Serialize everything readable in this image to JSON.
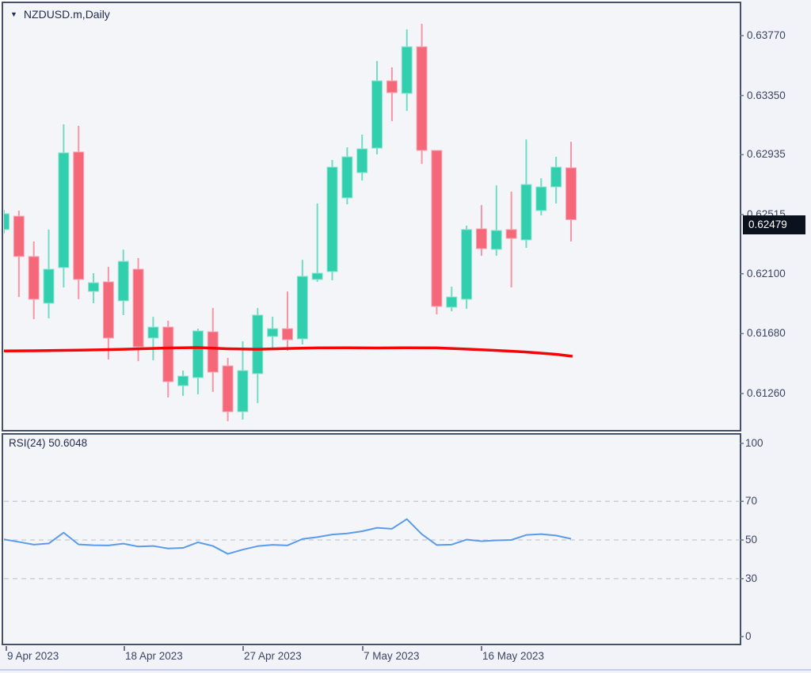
{
  "header": {
    "symbol": "NZDUSD.m,Daily",
    "dropdown_glyph": "▼"
  },
  "colors": {
    "background": "#f4f5f9",
    "outer_background": "#ffffff",
    "strip_background": "#f1f3f8",
    "frame": "#475069",
    "label_text": "#3b4563",
    "title_text": "#232c4e",
    "bull_body": "#31cfad",
    "bull_edge": "#90e6d2",
    "bull_wick": "#6fdcc5",
    "bear_body": "#f4687a",
    "bear_edge": "#f8a9b7",
    "bear_wick": "#f795a6",
    "ma_line": "#f50505",
    "rsi_line": "#5b9bea",
    "grid_dashed": "#c7cad6",
    "tick": "#6a7287",
    "price_box_bg": "#0c111e",
    "price_box_text": "#ffffff",
    "bottom_edge_line": "#c5cfec"
  },
  "time_axis": {
    "labels": [
      "9 Apr 2023",
      "18 Apr 2023",
      "27 Apr 2023",
      "7 May 2023",
      "16 May 2023"
    ]
  },
  "chart_data": [
    {
      "type": "candlestick",
      "panel": "price",
      "title": "NZDUSD.m,Daily",
      "legend_position": "top-left",
      "grid": "off",
      "y_axis_side": "right",
      "ylim": [
        0.6095,
        0.64
      ],
      "y_ticks": [
        {
          "label": "0.63770",
          "value": 0.6377
        },
        {
          "label": "0.63350",
          "value": 0.6335
        },
        {
          "label": "0.62935",
          "value": 0.62935
        },
        {
          "label": "0.62515",
          "value": 0.62515
        },
        {
          "label": "0.62100",
          "value": 0.621
        },
        {
          "label": "0.61680",
          "value": 0.6168
        },
        {
          "label": "0.61260",
          "value": 0.6126
        }
      ],
      "current_price": {
        "label": "0.62479",
        "value": 0.62479
      },
      "candles": [
        {
          "o": 0.6241,
          "h": 0.62548,
          "l": 0.62382,
          "c": 0.62521
        },
        {
          "o": 0.62504,
          "h": 0.62543,
          "l": 0.61937,
          "c": 0.62221
        },
        {
          "o": 0.62221,
          "h": 0.62326,
          "l": 0.61782,
          "c": 0.61921
        },
        {
          "o": 0.61893,
          "h": 0.6241,
          "l": 0.61787,
          "c": 0.62132
        },
        {
          "o": 0.62143,
          "h": 0.63148,
          "l": 0.62004,
          "c": 0.62948
        },
        {
          "o": 0.62954,
          "h": 0.63137,
          "l": 0.61921,
          "c": 0.6206
        },
        {
          "o": 0.61976,
          "h": 0.62104,
          "l": 0.61893,
          "c": 0.62037
        },
        {
          "o": 0.62043,
          "h": 0.62148,
          "l": 0.61499,
          "c": 0.61649
        },
        {
          "o": 0.6191,
          "h": 0.6227,
          "l": 0.6181,
          "c": 0.62187
        },
        {
          "o": 0.62132,
          "h": 0.6221,
          "l": 0.61487,
          "c": 0.61587
        },
        {
          "o": 0.61649,
          "h": 0.61798,
          "l": 0.61493,
          "c": 0.61726
        },
        {
          "o": 0.61726,
          "h": 0.61771,
          "l": 0.61232,
          "c": 0.61343
        },
        {
          "o": 0.61315,
          "h": 0.61421,
          "l": 0.61243,
          "c": 0.61382
        },
        {
          "o": 0.61371,
          "h": 0.61715,
          "l": 0.61254,
          "c": 0.61699
        },
        {
          "o": 0.61693,
          "h": 0.6186,
          "l": 0.61271,
          "c": 0.6141
        },
        {
          "o": 0.61454,
          "h": 0.6151,
          "l": 0.61066,
          "c": 0.61132
        },
        {
          "o": 0.61132,
          "h": 0.61626,
          "l": 0.61077,
          "c": 0.61421
        },
        {
          "o": 0.61399,
          "h": 0.6186,
          "l": 0.61193,
          "c": 0.6181
        },
        {
          "o": 0.6166,
          "h": 0.61798,
          "l": 0.61576,
          "c": 0.61715
        },
        {
          "o": 0.61715,
          "h": 0.61976,
          "l": 0.6156,
          "c": 0.61637
        },
        {
          "o": 0.61643,
          "h": 0.62198,
          "l": 0.61604,
          "c": 0.62082
        },
        {
          "o": 0.6206,
          "h": 0.62593,
          "l": 0.62043,
          "c": 0.62104
        },
        {
          "o": 0.62115,
          "h": 0.62898,
          "l": 0.62054,
          "c": 0.62848
        },
        {
          "o": 0.62632,
          "h": 0.62987,
          "l": 0.62587,
          "c": 0.6292
        },
        {
          "o": 0.62809,
          "h": 0.63076,
          "l": 0.62754,
          "c": 0.62976
        },
        {
          "o": 0.62981,
          "h": 0.63592,
          "l": 0.62937,
          "c": 0.63453
        },
        {
          "o": 0.63453,
          "h": 0.63548,
          "l": 0.6317,
          "c": 0.6337
        },
        {
          "o": 0.63365,
          "h": 0.63814,
          "l": 0.63242,
          "c": 0.63692
        },
        {
          "o": 0.63692,
          "h": 0.63853,
          "l": 0.6287,
          "c": 0.62965
        },
        {
          "o": 0.62965,
          "h": 0.62965,
          "l": 0.61815,
          "c": 0.61871
        },
        {
          "o": 0.61865,
          "h": 0.62009,
          "l": 0.61837,
          "c": 0.61937
        },
        {
          "o": 0.61921,
          "h": 0.62437,
          "l": 0.61854,
          "c": 0.6241
        },
        {
          "o": 0.62415,
          "h": 0.62582,
          "l": 0.62226,
          "c": 0.62276
        },
        {
          "o": 0.62271,
          "h": 0.6272,
          "l": 0.62226,
          "c": 0.62404
        },
        {
          "o": 0.6241,
          "h": 0.62676,
          "l": 0.62004,
          "c": 0.62348
        },
        {
          "o": 0.62337,
          "h": 0.63042,
          "l": 0.62282,
          "c": 0.62726
        },
        {
          "o": 0.62543,
          "h": 0.6277,
          "l": 0.62509,
          "c": 0.62709
        },
        {
          "o": 0.62709,
          "h": 0.6292,
          "l": 0.62593,
          "c": 0.62848
        },
        {
          "o": 0.62843,
          "h": 0.63026,
          "l": 0.62326,
          "c": 0.62479
        }
      ],
      "ma_overlay": {
        "name": "moving-average",
        "color_key": "ma_line",
        "points": [
          [
            -0.3,
            0.61558
          ],
          [
            2,
            0.6156
          ],
          [
            5,
            0.61564
          ],
          [
            8,
            0.6157
          ],
          [
            11,
            0.61579
          ],
          [
            13,
            0.61582
          ],
          [
            15,
            0.61574
          ],
          [
            17,
            0.6157
          ],
          [
            19,
            0.61576
          ],
          [
            21,
            0.6158
          ],
          [
            23,
            0.61581
          ],
          [
            25,
            0.61579
          ],
          [
            27,
            0.61581
          ],
          [
            29,
            0.6158
          ],
          [
            31,
            0.61572
          ],
          [
            33,
            0.61562
          ],
          [
            35,
            0.61551
          ],
          [
            37,
            0.61535
          ],
          [
            38.1,
            0.61521
          ]
        ]
      }
    },
    {
      "type": "line",
      "panel": "indicator",
      "name": "RSI(24)",
      "current_value_label": "50.6048",
      "ylim": [
        0,
        100
      ],
      "y_ticks": [
        {
          "label": "100",
          "value": 100
        },
        {
          "label": "70",
          "value": 70
        },
        {
          "label": "50",
          "value": 50
        },
        {
          "label": "30",
          "value": 30
        },
        {
          "label": "0",
          "value": 0
        }
      ],
      "dashed_levels": [
        70,
        50,
        30
      ],
      "values": [
        50.3,
        49.0,
        47.6,
        48.2,
        53.8,
        47.7,
        47.3,
        47.2,
        48.1,
        46.6,
        46.9,
        45.6,
        45.9,
        48.8,
        46.9,
        42.8,
        45.0,
        46.8,
        47.5,
        47.2,
        50.5,
        51.5,
        52.8,
        53.4,
        54.5,
        56.3,
        55.8,
        60.8,
        53.0,
        47.4,
        47.6,
        50.2,
        49.4,
        49.8,
        50.0,
        52.6,
        53.0,
        52.3,
        50.6
      ]
    }
  ]
}
